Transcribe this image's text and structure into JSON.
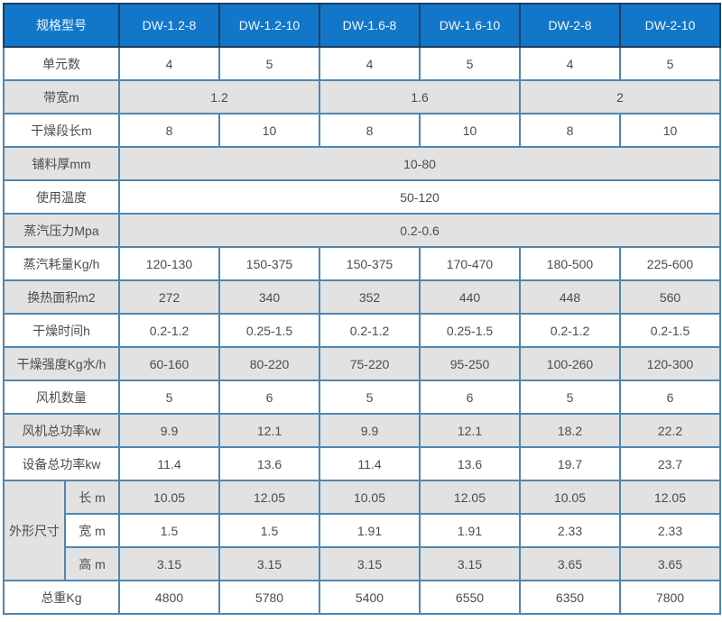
{
  "colors": {
    "header_bg": "#1277c8",
    "header_border": "#1c3f63",
    "body_border": "#4e86b2",
    "gray_row_bg": "#e2e2e2",
    "text": "#4c4c4c"
  },
  "table": {
    "header": {
      "col0": "规格型号",
      "models": [
        "DW-1.2-8",
        "DW-1.2-10",
        "DW-1.6-8",
        "DW-1.6-10",
        "DW-2-8",
        "DW-2-10"
      ]
    },
    "rows": [
      {
        "label": "单元数",
        "values": [
          "4",
          "5",
          "4",
          "5",
          "4",
          "5"
        ]
      },
      {
        "label": "带宽m",
        "values": [
          "1.2",
          "1.6",
          "2"
        ]
      },
      {
        "label": "干燥段长m",
        "values": [
          "8",
          "10",
          "8",
          "10",
          "8",
          "10"
        ]
      },
      {
        "label": "铺料厚mm",
        "values": [
          "10-80"
        ]
      },
      {
        "label": "使用温度",
        "values": [
          "50-120"
        ]
      },
      {
        "label": "蒸汽压力Mpa",
        "values": [
          "0.2-0.6"
        ]
      },
      {
        "label": "蒸汽耗量Kg/h",
        "values": [
          "120-130",
          "150-375",
          "150-375",
          "170-470",
          "180-500",
          "225-600"
        ]
      },
      {
        "label": "换热面积m2",
        "values": [
          "272",
          "340",
          "352",
          "440",
          "448",
          "560"
        ]
      },
      {
        "label": "干燥时间h",
        "values": [
          "0.2-1.2",
          "0.25-1.5",
          "0.2-1.2",
          "0.25-1.5",
          "0.2-1.2",
          "0.2-1.5"
        ]
      },
      {
        "label": "干燥强度Kg水/h",
        "values": [
          "60-160",
          "80-220",
          "75-220",
          "95-250",
          "100-260",
          "120-300"
        ]
      },
      {
        "label": "风机数量",
        "values": [
          "5",
          "6",
          "5",
          "6",
          "5",
          "6"
        ]
      },
      {
        "label": "风机总功率kw",
        "values": [
          "9.9",
          "12.1",
          "9.9",
          "12.1",
          "18.2",
          "22.2"
        ]
      },
      {
        "label": "设备总功率kw",
        "values": [
          "11.4",
          "13.6",
          "11.4",
          "13.6",
          "19.7",
          "23.7"
        ]
      },
      {
        "label": "外形尺寸",
        "sub": "长 m",
        "values": [
          "10.05",
          "12.05",
          "10.05",
          "12.05",
          "10.05",
          "12.05"
        ]
      },
      {
        "sub": "宽 m",
        "values": [
          "1.5",
          "1.5",
          "1.91",
          "1.91",
          "2.33",
          "2.33"
        ]
      },
      {
        "sub": "高 m",
        "values": [
          "3.15",
          "3.15",
          "3.15",
          "3.15",
          "3.65",
          "3.65"
        ]
      },
      {
        "label": "总重Kg",
        "values": [
          "4800",
          "5780",
          "5400",
          "6550",
          "6350",
          "7800"
        ]
      }
    ]
  }
}
